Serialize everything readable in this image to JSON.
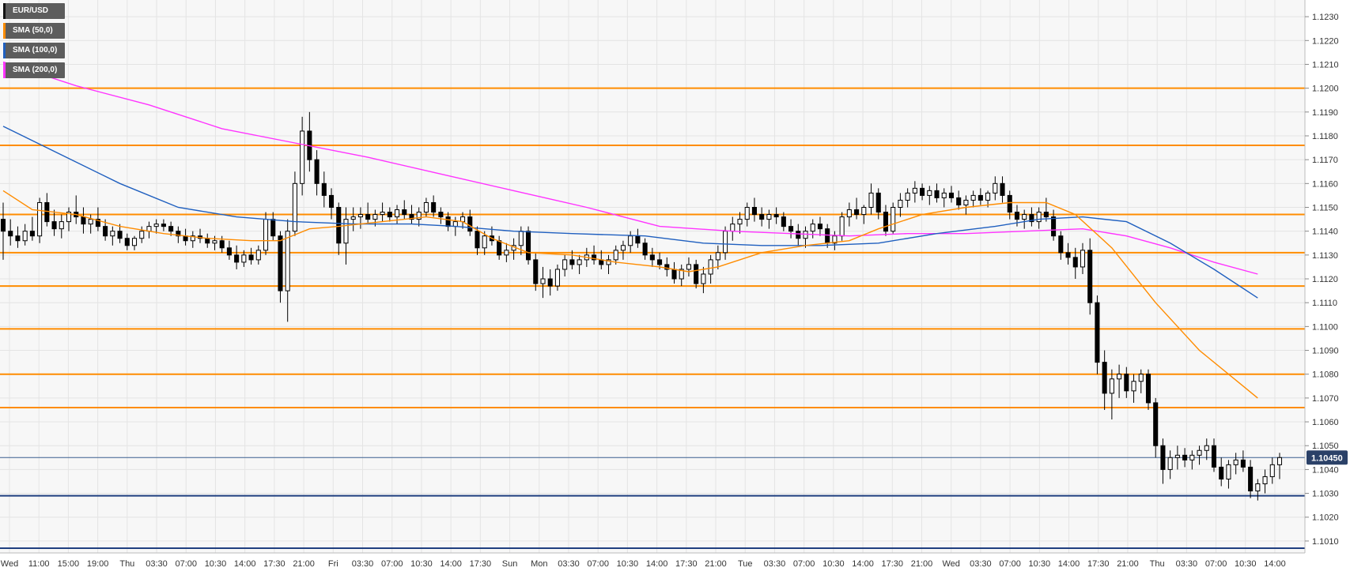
{
  "legend": {
    "items": [
      {
        "label": "EUR/USD",
        "color": "#111111"
      },
      {
        "label": "SMA (50,0)",
        "color": "#ff8c00"
      },
      {
        "label": "SMA (100,0)",
        "color": "#1f5fbf"
      },
      {
        "label": "SMA (200,0)",
        "color": "#ff33ff"
      }
    ]
  },
  "price_badge": "1.10450",
  "colors": {
    "background": "#f7f7f7",
    "grid": "#e4e4e4",
    "candle": "#000000",
    "resistance_support": "#ff8c00",
    "blue_level": "#1f3f7f",
    "current_price_line": "#3a5f8f",
    "badge": "#2b4168",
    "sma50": "#ff8c00",
    "sma100": "#1f5fbf",
    "sma200": "#ff33ff"
  },
  "chart_data": {
    "type": "candlestick",
    "symbol": "EUR/USD",
    "ylim": [
      1.1005,
      1.1237
    ],
    "y_ticks": [
      "1.1010",
      "1.1020",
      "1.1030",
      "1.1040",
      "1.1050",
      "1.1060",
      "1.1070",
      "1.1080",
      "1.1090",
      "1.1100",
      "1.1110",
      "1.1120",
      "1.1130",
      "1.1140",
      "1.1150",
      "1.1160",
      "1.1170",
      "1.1180",
      "1.1190",
      "1.1200",
      "1.1210",
      "1.1220",
      "1.1230"
    ],
    "x_ticks": [
      "Wed",
      "11:00",
      "15:00",
      "19:00",
      "Thu",
      "03:30",
      "07:00",
      "10:30",
      "14:00",
      "17:30",
      "21:00",
      "Fri",
      "03:30",
      "07:00",
      "10:30",
      "14:00",
      "17:30",
      "Sun",
      "Mon",
      "03:30",
      "07:00",
      "10:30",
      "14:00",
      "17:30",
      "21:00",
      "Tue",
      "03:30",
      "07:00",
      "10:30",
      "14:00",
      "17:30",
      "21:00",
      "Wed",
      "03:30",
      "07:00",
      "10:30",
      "14:00",
      "17:30",
      "21:00",
      "Thu",
      "03:30",
      "07:00",
      "10:30",
      "14:00"
    ],
    "horizontal_levels": {
      "orange": [
        1.12,
        1.1176,
        1.1147,
        1.1131,
        1.1117,
        1.1099,
        1.108,
        1.1066
      ],
      "blue": [
        1.1029,
        1.1007
      ]
    },
    "current_price": 1.1045,
    "candles": [
      [
        1.1145,
        1.1152,
        1.1128,
        1.114
      ],
      [
        1.114,
        1.1145,
        1.1134,
        1.1138
      ],
      [
        1.1138,
        1.1142,
        1.1133,
        1.1136
      ],
      [
        1.1136,
        1.1143,
        1.1134,
        1.114
      ],
      [
        1.114,
        1.1146,
        1.1136,
        1.1138
      ],
      [
        1.1138,
        1.1154,
        1.1135,
        1.1152
      ],
      [
        1.1152,
        1.1156,
        1.1142,
        1.1144
      ],
      [
        1.1144,
        1.1149,
        1.1138,
        1.1141
      ],
      [
        1.1141,
        1.1147,
        1.1137,
        1.1144
      ],
      [
        1.1144,
        1.115,
        1.114,
        1.1148
      ],
      [
        1.1148,
        1.1155,
        1.1143,
        1.1146
      ],
      [
        1.1146,
        1.115,
        1.1139,
        1.1143
      ],
      [
        1.1143,
        1.1147,
        1.1139,
        1.1145
      ],
      [
        1.1145,
        1.115,
        1.114,
        1.1142
      ],
      [
        1.1142,
        1.1145,
        1.1136,
        1.1138
      ],
      [
        1.1138,
        1.1142,
        1.1134,
        1.114
      ],
      [
        1.114,
        1.1143,
        1.1135,
        1.1137
      ],
      [
        1.1137,
        1.1139,
        1.1132,
        1.1134
      ],
      [
        1.1134,
        1.1138,
        1.1132,
        1.1137
      ],
      [
        1.1137,
        1.1142,
        1.1135,
        1.114
      ],
      [
        1.114,
        1.1144,
        1.1137,
        1.1142
      ],
      [
        1.1142,
        1.1145,
        1.1139,
        1.1143
      ],
      [
        1.1143,
        1.1145,
        1.114,
        1.1142
      ],
      [
        1.1142,
        1.1144,
        1.1138,
        1.114
      ],
      [
        1.114,
        1.1142,
        1.1135,
        1.1138
      ],
      [
        1.1138,
        1.1141,
        1.1134,
        1.1136
      ],
      [
        1.1136,
        1.114,
        1.1133,
        1.1138
      ],
      [
        1.1138,
        1.1141,
        1.1135,
        1.1137
      ],
      [
        1.1137,
        1.1139,
        1.1133,
        1.1135
      ],
      [
        1.1135,
        1.1138,
        1.1132,
        1.1136
      ],
      [
        1.1136,
        1.1138,
        1.1131,
        1.1133
      ],
      [
        1.1133,
        1.1136,
        1.1128,
        1.113
      ],
      [
        1.113,
        1.1134,
        1.1124,
        1.1127
      ],
      [
        1.1127,
        1.1132,
        1.1125,
        1.113
      ],
      [
        1.113,
        1.1133,
        1.1126,
        1.1128
      ],
      [
        1.1128,
        1.1134,
        1.1126,
        1.1132
      ],
      [
        1.1132,
        1.1148,
        1.113,
        1.1145
      ],
      [
        1.1145,
        1.1148,
        1.1136,
        1.1138
      ],
      [
        1.1138,
        1.114,
        1.111,
        1.1115
      ],
      [
        1.1115,
        1.1145,
        1.1102,
        1.114
      ],
      [
        1.114,
        1.1165,
        1.1138,
        1.116
      ],
      [
        1.116,
        1.1188,
        1.1155,
        1.1182
      ],
      [
        1.1182,
        1.119,
        1.1165,
        1.117
      ],
      [
        1.117,
        1.1174,
        1.1155,
        1.116
      ],
      [
        1.116,
        1.1165,
        1.115,
        1.1155
      ],
      [
        1.1155,
        1.1158,
        1.1145,
        1.115
      ],
      [
        1.115,
        1.1152,
        1.113,
        1.1135
      ],
      [
        1.1135,
        1.115,
        1.1126,
        1.1145
      ],
      [
        1.1145,
        1.115,
        1.114,
        1.1146
      ],
      [
        1.1146,
        1.115,
        1.1141,
        1.1147
      ],
      [
        1.1147,
        1.1152,
        1.1143,
        1.1145
      ],
      [
        1.1145,
        1.1149,
        1.1142,
        1.1147
      ],
      [
        1.1147,
        1.1152,
        1.1144,
        1.1148
      ],
      [
        1.1148,
        1.115,
        1.1144,
        1.1146
      ],
      [
        1.1146,
        1.1151,
        1.1143,
        1.1149
      ],
      [
        1.1149,
        1.1153,
        1.1145,
        1.1147
      ],
      [
        1.1147,
        1.1151,
        1.1143,
        1.1145
      ],
      [
        1.1145,
        1.115,
        1.1142,
        1.1148
      ],
      [
        1.1148,
        1.1154,
        1.1146,
        1.1152
      ],
      [
        1.1152,
        1.1155,
        1.1146,
        1.1148
      ],
      [
        1.1148,
        1.115,
        1.1143,
        1.1146
      ],
      [
        1.1146,
        1.1148,
        1.114,
        1.1142
      ],
      [
        1.1142,
        1.1146,
        1.1138,
        1.1144
      ],
      [
        1.1144,
        1.1148,
        1.1141,
        1.1146
      ],
      [
        1.1146,
        1.1149,
        1.1138,
        1.114
      ],
      [
        1.114,
        1.1142,
        1.113,
        1.1133
      ],
      [
        1.1133,
        1.114,
        1.113,
        1.1138
      ],
      [
        1.1138,
        1.1142,
        1.1134,
        1.1136
      ],
      [
        1.1136,
        1.1138,
        1.1128,
        1.113
      ],
      [
        1.113,
        1.1135,
        1.1127,
        1.1132
      ],
      [
        1.1132,
        1.1137,
        1.1128,
        1.1134
      ],
      [
        1.1134,
        1.1142,
        1.113,
        1.114
      ],
      [
        1.114,
        1.1142,
        1.1126,
        1.1128
      ],
      [
        1.1128,
        1.1131,
        1.1115,
        1.1118
      ],
      [
        1.1118,
        1.1125,
        1.1112,
        1.112
      ],
      [
        1.112,
        1.1124,
        1.1113,
        1.1117
      ],
      [
        1.1117,
        1.1126,
        1.1115,
        1.1124
      ],
      [
        1.1124,
        1.113,
        1.1121,
        1.1128
      ],
      [
        1.1128,
        1.1132,
        1.1124,
        1.1126
      ],
      [
        1.1126,
        1.113,
        1.1122,
        1.1128
      ],
      [
        1.1128,
        1.1133,
        1.1125,
        1.113
      ],
      [
        1.113,
        1.1134,
        1.1126,
        1.1128
      ],
      [
        1.1128,
        1.1132,
        1.1124,
        1.1126
      ],
      [
        1.1126,
        1.113,
        1.1122,
        1.1128
      ],
      [
        1.1128,
        1.1134,
        1.1126,
        1.1132
      ],
      [
        1.1132,
        1.1136,
        1.1128,
        1.1134
      ],
      [
        1.1134,
        1.114,
        1.1131,
        1.1138
      ],
      [
        1.1138,
        1.1141,
        1.1133,
        1.1135
      ],
      [
        1.1135,
        1.1137,
        1.1128,
        1.113
      ],
      [
        1.113,
        1.1133,
        1.1125,
        1.1128
      ],
      [
        1.1128,
        1.1131,
        1.1124,
        1.1126
      ],
      [
        1.1126,
        1.1129,
        1.1121,
        1.1124
      ],
      [
        1.1124,
        1.1127,
        1.1118,
        1.112
      ],
      [
        1.112,
        1.1126,
        1.1117,
        1.1124
      ],
      [
        1.1124,
        1.1129,
        1.1121,
        1.1126
      ],
      [
        1.1126,
        1.1128,
        1.1116,
        1.1118
      ],
      [
        1.1118,
        1.1125,
        1.1114,
        1.1122
      ],
      [
        1.1122,
        1.113,
        1.1118,
        1.1128
      ],
      [
        1.1128,
        1.1134,
        1.1124,
        1.1131
      ],
      [
        1.1131,
        1.1142,
        1.1128,
        1.114
      ],
      [
        1.114,
        1.1146,
        1.1136,
        1.1143
      ],
      [
        1.1143,
        1.1148,
        1.1139,
        1.1145
      ],
      [
        1.1145,
        1.1152,
        1.1142,
        1.115
      ],
      [
        1.115,
        1.1154,
        1.1144,
        1.1147
      ],
      [
        1.1147,
        1.115,
        1.1142,
        1.1145
      ],
      [
        1.1145,
        1.1149,
        1.1141,
        1.1147
      ],
      [
        1.1147,
        1.115,
        1.1143,
        1.1146
      ],
      [
        1.1146,
        1.1148,
        1.114,
        1.1142
      ],
      [
        1.1142,
        1.1145,
        1.1137,
        1.114
      ],
      [
        1.114,
        1.1143,
        1.1134,
        1.1137
      ],
      [
        1.1137,
        1.1142,
        1.1133,
        1.114
      ],
      [
        1.114,
        1.1145,
        1.1137,
        1.1143
      ],
      [
        1.1143,
        1.1146,
        1.1138,
        1.1141
      ],
      [
        1.1141,
        1.1143,
        1.1133,
        1.1135
      ],
      [
        1.1135,
        1.114,
        1.1132,
        1.1138
      ],
      [
        1.1138,
        1.1148,
        1.1136,
        1.1146
      ],
      [
        1.1146,
        1.1152,
        1.1142,
        1.1149
      ],
      [
        1.1149,
        1.1154,
        1.1145,
        1.1147
      ],
      [
        1.1147,
        1.1151,
        1.1143,
        1.115
      ],
      [
        1.115,
        1.116,
        1.1147,
        1.1156
      ],
      [
        1.1156,
        1.1158,
        1.1145,
        1.1148
      ],
      [
        1.1148,
        1.1151,
        1.1138,
        1.114
      ],
      [
        1.114,
        1.1152,
        1.1139,
        1.115
      ],
      [
        1.115,
        1.1156,
        1.1146,
        1.1153
      ],
      [
        1.1153,
        1.1158,
        1.115,
        1.1156
      ],
      [
        1.1156,
        1.1161,
        1.1152,
        1.1158
      ],
      [
        1.1158,
        1.116,
        1.1153,
        1.1155
      ],
      [
        1.1155,
        1.1159,
        1.1151,
        1.1157
      ],
      [
        1.1157,
        1.116,
        1.1152,
        1.1154
      ],
      [
        1.1154,
        1.1158,
        1.115,
        1.1156
      ],
      [
        1.1156,
        1.1159,
        1.1152,
        1.1154
      ],
      [
        1.1154,
        1.1157,
        1.1149,
        1.1151
      ],
      [
        1.1151,
        1.1155,
        1.1147,
        1.1153
      ],
      [
        1.1153,
        1.1157,
        1.115,
        1.1155
      ],
      [
        1.1155,
        1.1158,
        1.1151,
        1.1153
      ],
      [
        1.1153,
        1.1157,
        1.115,
        1.1156
      ],
      [
        1.1156,
        1.1163,
        1.1153,
        1.116
      ],
      [
        1.116,
        1.1163,
        1.1152,
        1.1155
      ],
      [
        1.1155,
        1.1157,
        1.1145,
        1.1148
      ],
      [
        1.1148,
        1.1151,
        1.1142,
        1.1145
      ],
      [
        1.1145,
        1.1149,
        1.1141,
        1.1147
      ],
      [
        1.1147,
        1.115,
        1.1142,
        1.1144
      ],
      [
        1.1144,
        1.115,
        1.1141,
        1.1148
      ],
      [
        1.1148,
        1.1154,
        1.1144,
        1.1146
      ],
      [
        1.1146,
        1.1149,
        1.1136,
        1.1138
      ],
      [
        1.1138,
        1.114,
        1.1128,
        1.1131
      ],
      [
        1.1131,
        1.1135,
        1.1126,
        1.1129
      ],
      [
        1.1129,
        1.1133,
        1.112,
        1.1125
      ],
      [
        1.1125,
        1.1135,
        1.1122,
        1.1132
      ],
      [
        1.1132,
        1.1137,
        1.1105,
        1.111
      ],
      [
        1.111,
        1.1113,
        1.108,
        1.1085
      ],
      [
        1.1085,
        1.109,
        1.1065,
        1.1072
      ],
      [
        1.1072,
        1.1082,
        1.1061,
        1.1078
      ],
      [
        1.1078,
        1.1084,
        1.107,
        1.108
      ],
      [
        1.108,
        1.1083,
        1.107,
        1.1073
      ],
      [
        1.1073,
        1.108,
        1.1068,
        1.1077
      ],
      [
        1.1077,
        1.1082,
        1.1072,
        1.108
      ],
      [
        1.108,
        1.1082,
        1.1065,
        1.1068
      ],
      [
        1.1068,
        1.107,
        1.1045,
        1.105
      ],
      [
        1.105,
        1.1053,
        1.1034,
        1.104
      ],
      [
        1.104,
        1.1048,
        1.1036,
        1.1045
      ],
      [
        1.1045,
        1.105,
        1.104,
        1.1046
      ],
      [
        1.1046,
        1.1049,
        1.1041,
        1.1044
      ],
      [
        1.1044,
        1.1048,
        1.104,
        1.1046
      ],
      [
        1.1046,
        1.105,
        1.1042,
        1.1048
      ],
      [
        1.1048,
        1.1053,
        1.1044,
        1.105
      ],
      [
        1.105,
        1.1053,
        1.1039,
        1.1041
      ],
      [
        1.1041,
        1.1045,
        1.1033,
        1.1036
      ],
      [
        1.1036,
        1.1044,
        1.1032,
        1.1042
      ],
      [
        1.1042,
        1.1047,
        1.1038,
        1.1044
      ],
      [
        1.1044,
        1.1048,
        1.1039,
        1.1041
      ],
      [
        1.1041,
        1.1044,
        1.1028,
        1.1031
      ],
      [
        1.1031,
        1.1036,
        1.1027,
        1.1034
      ],
      [
        1.1034,
        1.104,
        1.103,
        1.1037
      ],
      [
        1.1037,
        1.1045,
        1.1034,
        1.1042
      ],
      [
        1.1042,
        1.1047,
        1.1036,
        1.1045
      ]
    ],
    "sma50": [
      [
        0,
        1.1157
      ],
      [
        4,
        1.1149
      ],
      [
        10,
        1.1147
      ],
      [
        16,
        1.1142
      ],
      [
        22,
        1.1139
      ],
      [
        28,
        1.1137
      ],
      [
        34,
        1.1136
      ],
      [
        38,
        1.1136
      ],
      [
        42,
        1.1141
      ],
      [
        46,
        1.1142
      ],
      [
        52,
        1.1144
      ],
      [
        58,
        1.1146
      ],
      [
        63,
        1.1144
      ],
      [
        67,
        1.1137
      ],
      [
        72,
        1.1131
      ],
      [
        78,
        1.113
      ],
      [
        84,
        1.1127
      ],
      [
        90,
        1.1125
      ],
      [
        94,
        1.1123
      ],
      [
        98,
        1.1125
      ],
      [
        104,
        1.1131
      ],
      [
        110,
        1.1134
      ],
      [
        116,
        1.1136
      ],
      [
        120,
        1.1141
      ],
      [
        126,
        1.1147
      ],
      [
        132,
        1.115
      ],
      [
        138,
        1.1152
      ],
      [
        143,
        1.1152
      ],
      [
        147,
        1.1147
      ],
      [
        152,
        1.1133
      ],
      [
        158,
        1.111
      ],
      [
        164,
        1.109
      ],
      [
        170,
        1.1075
      ],
      [
        172,
        1.107
      ]
    ],
    "sma100": [
      [
        0,
        1.1184
      ],
      [
        8,
        1.1172
      ],
      [
        16,
        1.116
      ],
      [
        24,
        1.115
      ],
      [
        32,
        1.1146
      ],
      [
        40,
        1.1144
      ],
      [
        48,
        1.1143
      ],
      [
        56,
        1.1143
      ],
      [
        62,
        1.1142
      ],
      [
        70,
        1.114
      ],
      [
        78,
        1.1139
      ],
      [
        88,
        1.1138
      ],
      [
        96,
        1.1135
      ],
      [
        104,
        1.1134
      ],
      [
        112,
        1.1134
      ],
      [
        120,
        1.1135
      ],
      [
        128,
        1.1139
      ],
      [
        136,
        1.1142
      ],
      [
        142,
        1.1145
      ],
      [
        148,
        1.1146
      ],
      [
        154,
        1.1144
      ],
      [
        160,
        1.1135
      ],
      [
        166,
        1.1124
      ],
      [
        172,
        1.1112
      ]
    ],
    "sma200": [
      [
        0,
        1.1211
      ],
      [
        10,
        1.1201
      ],
      [
        20,
        1.1193
      ],
      [
        30,
        1.1183
      ],
      [
        40,
        1.1177
      ],
      [
        50,
        1.1171
      ],
      [
        60,
        1.1164
      ],
      [
        70,
        1.1157
      ],
      [
        80,
        1.115
      ],
      [
        90,
        1.1142
      ],
      [
        100,
        1.114
      ],
      [
        108,
        1.1139
      ],
      [
        116,
        1.1138
      ],
      [
        124,
        1.1139
      ],
      [
        132,
        1.1139
      ],
      [
        140,
        1.114
      ],
      [
        148,
        1.1141
      ],
      [
        154,
        1.1138
      ],
      [
        160,
        1.1133
      ],
      [
        166,
        1.1127
      ],
      [
        172,
        1.1122
      ]
    ]
  }
}
